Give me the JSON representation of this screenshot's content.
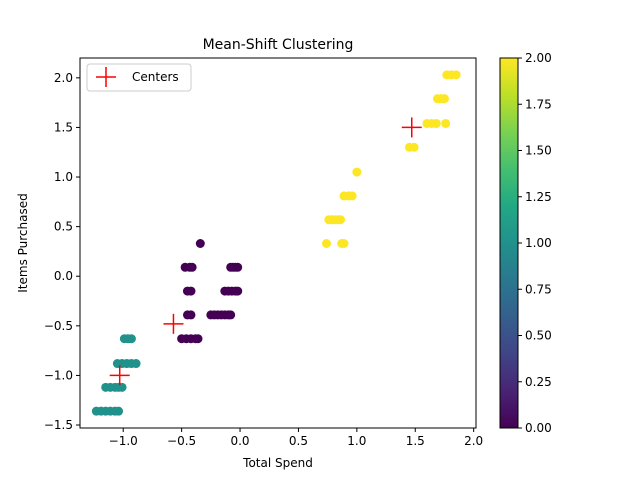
{
  "chart_data": {
    "type": "scatter",
    "title": "Mean-Shift Clustering",
    "xlabel": "Total Spend",
    "ylabel": "Items Purchased",
    "xlim": [
      -1.37,
      2.02
    ],
    "ylim": [
      -1.53,
      2.2
    ],
    "xticks": [
      -1.0,
      -0.5,
      0.0,
      0.5,
      1.0,
      1.5,
      2.0
    ],
    "xtick_labels": [
      "−1.0",
      "−0.5",
      "0.0",
      "0.5",
      "1.0",
      "1.5",
      "2.0"
    ],
    "yticks": [
      -1.5,
      -1.0,
      -0.5,
      0.0,
      0.5,
      1.0,
      1.5,
      2.0
    ],
    "ytick_labels": [
      "−1.5",
      "−1.0",
      "−0.5",
      "0.0",
      "0.5",
      "1.0",
      "1.5",
      "2.0"
    ],
    "grid": false,
    "legend": {
      "position": "top-left",
      "entries": [
        "Centers"
      ]
    },
    "colorbar": {
      "colormap": "viridis",
      "range": [
        0.0,
        2.0
      ],
      "ticks": [
        0.0,
        0.25,
        0.5,
        0.75,
        1.0,
        1.25,
        1.5,
        1.75,
        2.0
      ],
      "tick_labels": [
        "0.00",
        "0.25",
        "0.50",
        "0.75",
        "1.00",
        "1.25",
        "1.50",
        "1.75",
        "2.00"
      ]
    },
    "series": [
      {
        "cluster": 0,
        "color": "#440154",
        "x": [
          -0.5,
          -0.46,
          -0.42,
          -0.38,
          -0.36,
          -0.45,
          -0.42,
          -0.25,
          -0.22,
          -0.19,
          -0.16,
          -0.13,
          -0.1,
          -0.08,
          -0.13,
          -0.1,
          -0.07,
          -0.04,
          -0.02,
          -0.47,
          -0.43,
          -0.41,
          -0.08,
          -0.06,
          -0.04,
          -0.02,
          -0.45,
          -0.42,
          -0.34
        ],
        "y": [
          -0.63,
          -0.63,
          -0.63,
          -0.63,
          -0.63,
          -0.15,
          -0.15,
          -0.39,
          -0.39,
          -0.39,
          -0.39,
          -0.39,
          -0.39,
          -0.39,
          -0.15,
          -0.15,
          -0.15,
          -0.15,
          -0.15,
          0.09,
          0.09,
          0.09,
          0.09,
          0.09,
          0.09,
          0.09,
          -0.39,
          -0.39,
          0.33
        ]
      },
      {
        "cluster": 1,
        "color": "#21918c",
        "x": [
          -1.23,
          -1.19,
          -1.15,
          -1.11,
          -1.07,
          -1.04,
          -1.15,
          -1.11,
          -1.07,
          -1.04,
          -1.01,
          -1.05,
          -1.01,
          -0.97,
          -0.93,
          -0.89,
          -0.99,
          -0.96,
          -0.93
        ],
        "y": [
          -1.36,
          -1.36,
          -1.36,
          -1.36,
          -1.36,
          -1.36,
          -1.12,
          -1.12,
          -1.12,
          -1.12,
          -1.12,
          -0.88,
          -0.88,
          -0.88,
          -0.88,
          -0.88,
          -0.63,
          -0.63,
          -0.63
        ]
      },
      {
        "cluster": 2,
        "color": "#fde725",
        "x": [
          0.74,
          0.76,
          0.79,
          0.84,
          0.87,
          0.89,
          0.79,
          0.82,
          0.86,
          0.89,
          0.93,
          0.96,
          1.0,
          1.45,
          1.49,
          1.6,
          1.64,
          1.68,
          1.76,
          1.69,
          1.72,
          1.75,
          1.77,
          1.81,
          1.85
        ],
        "y": [
          0.33,
          0.57,
          0.57,
          0.57,
          0.33,
          0.33,
          0.57,
          0.57,
          0.57,
          0.81,
          0.81,
          0.81,
          1.05,
          1.3,
          1.3,
          1.54,
          1.54,
          1.54,
          1.54,
          1.79,
          1.79,
          1.79,
          2.03,
          2.03,
          2.03
        ]
      }
    ],
    "centers": {
      "name": "Centers",
      "color": "#ff0000",
      "x": [
        -1.03,
        -0.57,
        1.47
      ],
      "y": [
        -1.0,
        -0.48,
        1.5
      ]
    }
  }
}
